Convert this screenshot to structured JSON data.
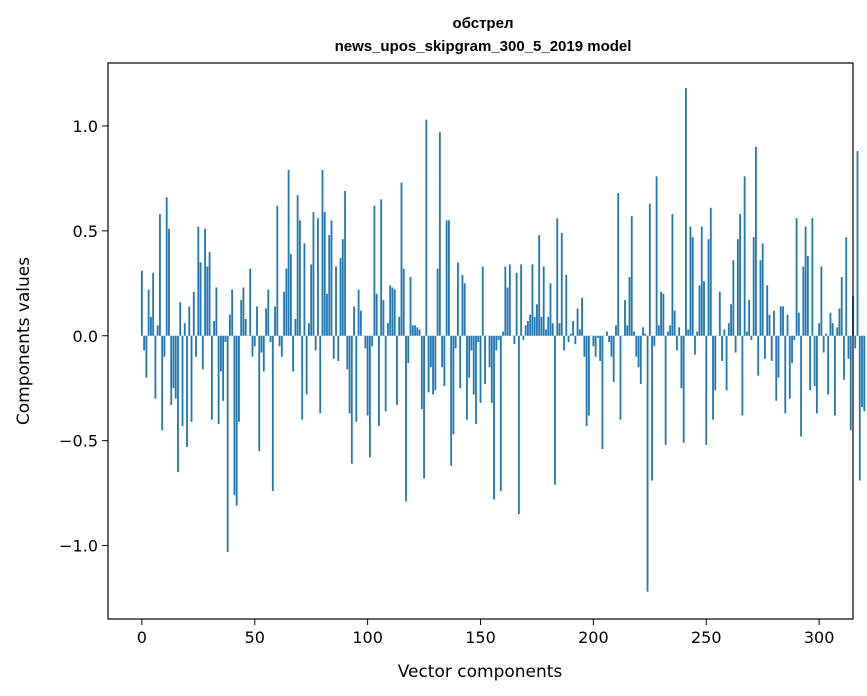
{
  "chart_data": {
    "type": "bar",
    "title": "обстрел",
    "subtitle": "news_upos_skipgram_300_5_2019 model",
    "xlabel": "Vector components",
    "ylabel": "Components values",
    "xlim": [
      -15,
      315
    ],
    "ylim": [
      -1.35,
      1.3
    ],
    "xticks": [
      0,
      50,
      100,
      150,
      200,
      250,
      300
    ],
    "xtick_labels": [
      "0",
      "50",
      "100",
      "150",
      "200",
      "250",
      "300"
    ],
    "yticks": [
      -1.0,
      -0.5,
      0.0,
      0.5,
      1.0
    ],
    "ytick_labels": [
      "−1.0",
      "−0.5",
      "0.0",
      "0.5",
      "1.0"
    ],
    "grid": false,
    "bar_color": "#1f77b4",
    "values": [
      0.31,
      -0.07,
      -0.2,
      0.22,
      0.09,
      0.3,
      -0.3,
      0.05,
      0.58,
      -0.45,
      -0.1,
      0.66,
      0.51,
      -0.33,
      -0.25,
      -0.3,
      -0.65,
      0.16,
      -0.43,
      0.06,
      -0.53,
      0.14,
      -0.41,
      0.21,
      -0.1,
      0.52,
      0.35,
      -0.16,
      0.51,
      0.33,
      0.4,
      -0.4,
      0.07,
      0.23,
      -0.42,
      -0.17,
      -0.31,
      -0.03,
      -1.03,
      0.1,
      0.22,
      -0.76,
      -0.81,
      -0.41,
      0.17,
      0.23,
      0.08,
      0.0,
      0.32,
      -0.1,
      -0.05,
      0.14,
      -0.55,
      -0.08,
      -0.17,
      0.13,
      0.22,
      -0.03,
      -0.74,
      0.14,
      0.62,
      -0.05,
      -0.1,
      0.21,
      0.32,
      0.79,
      0.39,
      -0.17,
      0.08,
      0.67,
      0.55,
      -0.4,
      0.44,
      -0.28,
      0.06,
      0.34,
      0.59,
      -0.07,
      0.56,
      -0.37,
      0.79,
      0.59,
      0.2,
      0.48,
      0.55,
      -0.11,
      0.33,
      -0.12,
      0.37,
      0.46,
      0.69,
      -0.16,
      -0.37,
      -0.61,
      0.14,
      -0.41,
      0.22,
      0.12,
      0.0,
      -0.06,
      -0.38,
      -0.58,
      -0.05,
      0.62,
      0.2,
      -0.43,
      0.65,
      0.17,
      -0.36,
      0.06,
      0.24,
      0.23,
      0.22,
      -0.33,
      0.09,
      0.73,
      0.32,
      -0.79,
      -0.13,
      0.28,
      0.05,
      0.05,
      0.04,
      0.03,
      -0.35,
      -0.68,
      1.03,
      -0.27,
      -0.15,
      -0.28,
      -0.26,
      0.32,
      0.97,
      -0.15,
      -0.24,
      0.55,
      0.55,
      -0.62,
      -0.47,
      -0.06,
      0.35,
      -0.25,
      0.29,
      0.25,
      -0.4,
      -0.2,
      -0.07,
      -0.28,
      -0.42,
      -0.03,
      -0.32,
      0.33,
      -0.23,
      0.0,
      -0.15,
      -0.32,
      -0.78,
      -0.07,
      -0.02,
      -0.74,
      0.02,
      0.33,
      0.23,
      0.34,
      0.0,
      -0.04,
      0.3,
      -0.85,
      0.34,
      -0.02,
      0.05,
      0.07,
      0.1,
      0.34,
      0.09,
      0.15,
      0.48,
      0.09,
      0.33,
      0.03,
      0.09,
      0.25,
      0.06,
      -0.71,
      0.56,
      0.06,
      0.49,
      -0.07,
      0.29,
      -0.03,
      0.01,
      0.07,
      -0.04,
      0.13,
      0.03,
      0.18,
      -0.1,
      -0.43,
      -0.38,
      0.0,
      -0.05,
      -0.1,
      -0.01,
      -0.12,
      -0.54,
      0.0,
      0.02,
      -0.03,
      -0.1,
      -0.22,
      0.05,
      0.68,
      -0.4,
      0.0,
      0.17,
      0.05,
      0.28,
      0.57,
      0.02,
      -0.1,
      -0.15,
      -0.23,
      0.04,
      0.01,
      -1.22,
      0.63,
      -0.69,
      -0.05,
      0.76,
      0.05,
      0.21,
      0.2,
      -0.52,
      0.02,
      0.05,
      0.58,
      0.12,
      -0.07,
      0.04,
      -0.25,
      -0.51,
      1.18,
      0.03,
      0.52,
      0.47,
      -0.09,
      0.02,
      0.24,
      0.52,
      0.26,
      -0.52,
      0.46,
      0.61,
      -0.4,
      -0.26,
      0.0,
      0.21,
      -0.12,
      0.03,
      -0.26,
      0.06,
      0.15,
      0.36,
      -0.08,
      0.46,
      0.58,
      -0.38,
      0.76,
      0.02,
      0.17,
      -0.02,
      0.47,
      0.9,
      -0.19,
      0.36,
      0.44,
      -0.11,
      0.24,
      0.1,
      -0.12,
      0.12,
      -0.31,
      -0.2,
      0.14,
      0.14,
      -0.37,
      0.1,
      -0.3,
      -0.13,
      -0.02,
      0.56,
      0.11,
      -0.48,
      0.33,
      0.52,
      0.38,
      -0.26,
      0.56,
      -0.24,
      -0.37,
      0.06,
      0.33,
      -0.08,
      0.01,
      -0.28,
      0.11,
      0.06,
      -0.38,
      0.04,
      0.13,
      0.28,
      -0.21,
      0.47,
      -0.11,
      -0.45,
      0.19,
      -0.06,
      0.88,
      -0.69,
      -0.34,
      -0.36
    ],
    "highlighted_values": {
      "note_free": true
    }
  }
}
